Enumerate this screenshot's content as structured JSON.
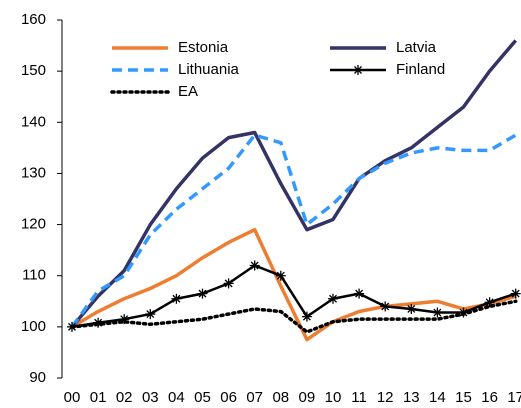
{
  "chart_data": {
    "type": "line",
    "categories": [
      "00",
      "01",
      "02",
      "03",
      "04",
      "05",
      "06",
      "07",
      "08",
      "09",
      "10",
      "11",
      "12",
      "13",
      "14",
      "15",
      "16",
      "17"
    ],
    "ylim": [
      90,
      160
    ],
    "yticks": [
      90,
      100,
      110,
      120,
      130,
      140,
      150,
      160
    ],
    "grid": false,
    "series": [
      {
        "name": "Estonia",
        "color": "#ed7d31",
        "style": "solid",
        "values": [
          100,
          103,
          105.5,
          107.5,
          110,
          113.5,
          116.5,
          119,
          108,
          97.5,
          101,
          103,
          104,
          104.5,
          105,
          103.5,
          104.5,
          106
        ]
      },
      {
        "name": "Latvia",
        "color": "#333366",
        "style": "solid",
        "values": [
          100,
          106,
          111,
          120,
          127,
          133,
          137,
          138,
          128,
          119,
          121,
          129,
          132.5,
          135,
          139,
          143,
          150,
          156
        ]
      },
      {
        "name": "Lithuania",
        "color": "#3399ff",
        "style": "dashed",
        "values": [
          100,
          107,
          110,
          118,
          123,
          127,
          131,
          137.5,
          136,
          120,
          124,
          129,
          132,
          134,
          135,
          134.5,
          134.5,
          137.5
        ]
      },
      {
        "name": "Finland",
        "color": "#000000",
        "style": "solid",
        "marker": "asterisk",
        "values": [
          100,
          100.8,
          101.5,
          102.5,
          105.5,
          106.5,
          108.5,
          112,
          110,
          102,
          105.5,
          106.5,
          104,
          103.5,
          102.8,
          102.8,
          104.8,
          106.5
        ]
      },
      {
        "name": "EA",
        "color": "#000000",
        "style": "dotted",
        "values": [
          100,
          100.5,
          101,
          100.5,
          101,
          101.5,
          102.5,
          103.5,
          103,
          99,
          101,
          101.5,
          101.5,
          101.5,
          101.5,
          102.5,
          104,
          105
        ]
      }
    ]
  }
}
